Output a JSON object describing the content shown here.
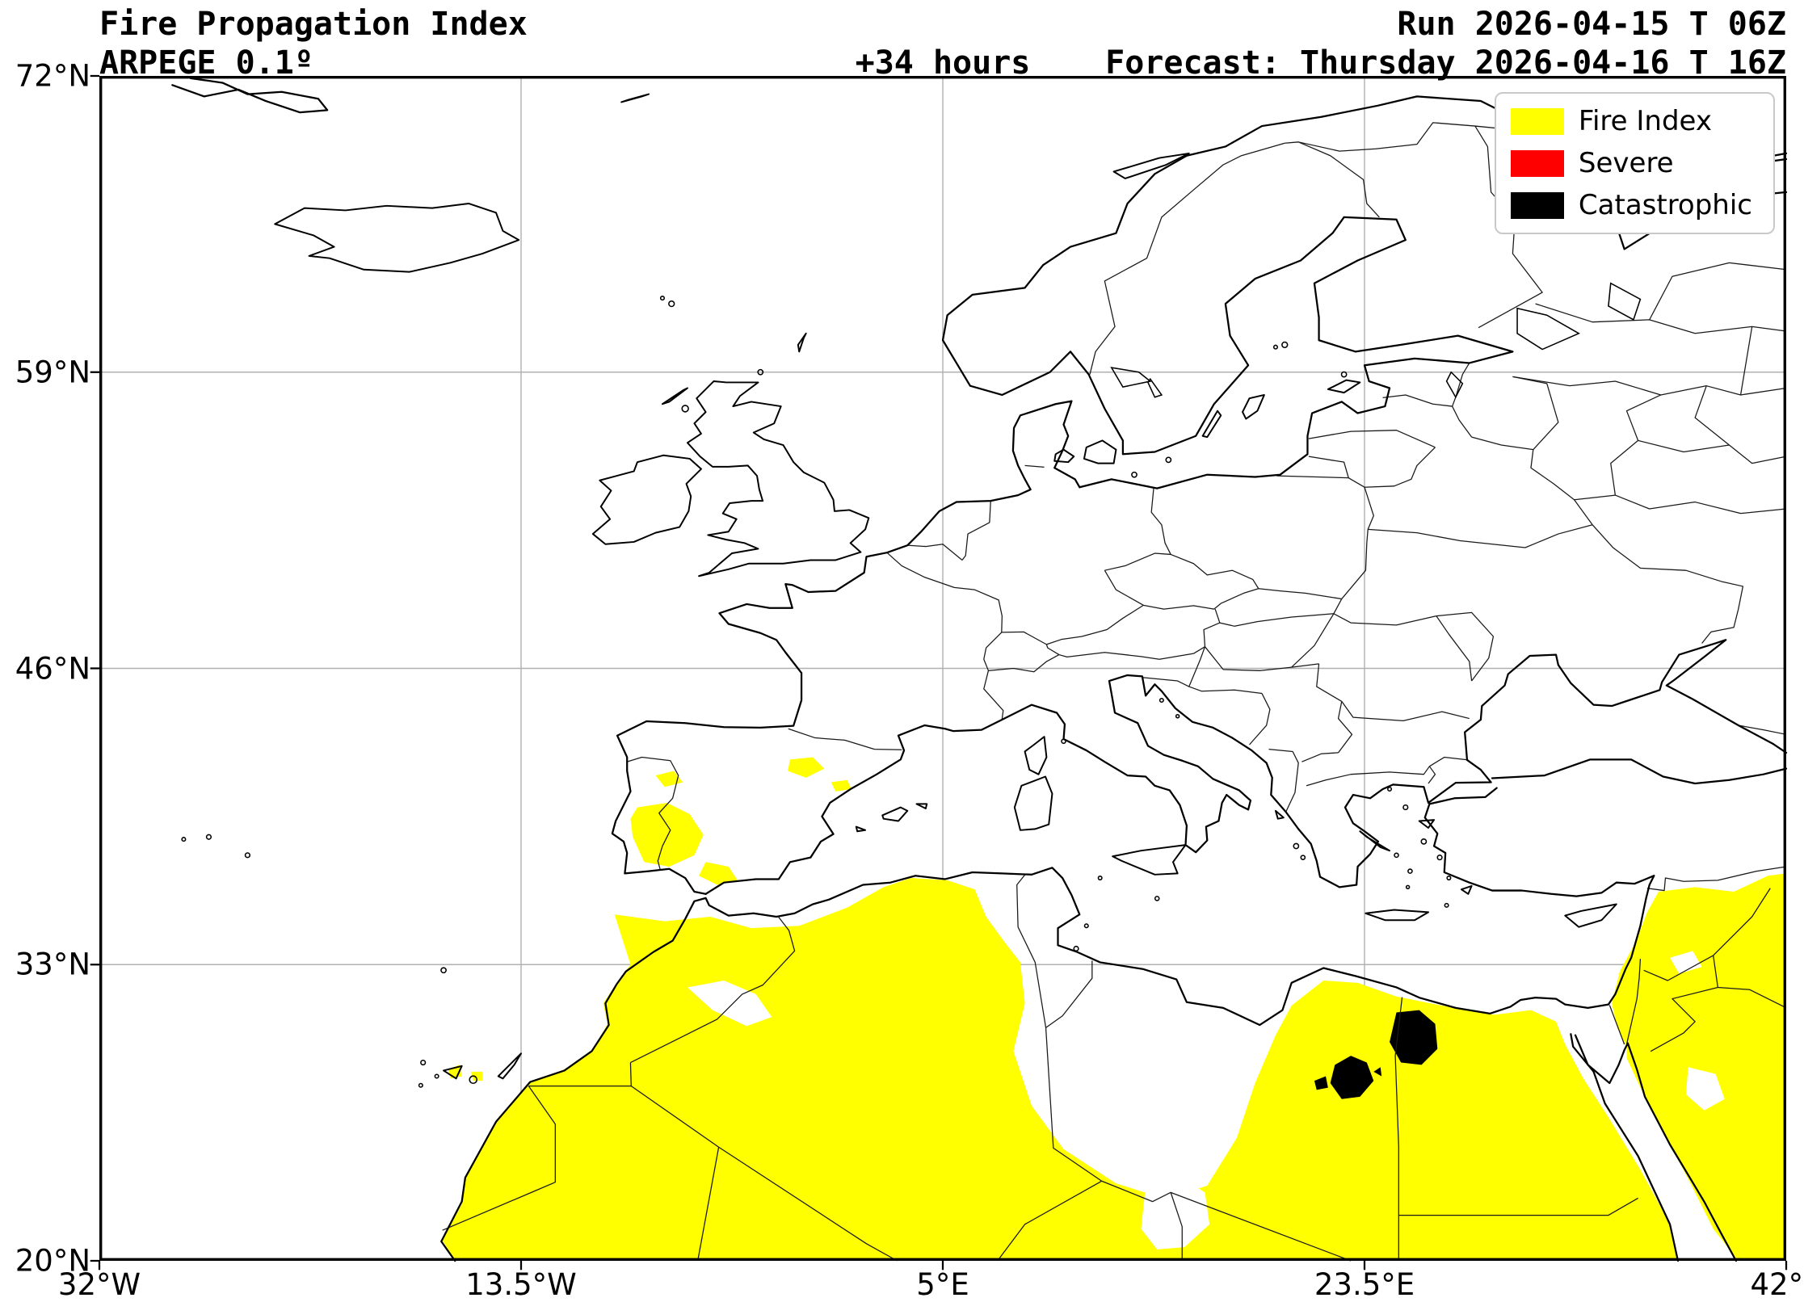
{
  "header": {
    "title": "Fire Propagation Index",
    "model": "ARPEGE 0.1º",
    "lead_time": "+34 hours",
    "run": "Run 2026-04-15 T 06Z",
    "forecast": "Forecast: Thursday 2026-04-16 T 16Z"
  },
  "legend": {
    "items": [
      {
        "label": "Fire Index",
        "color": "#ffff00"
      },
      {
        "label": "Severe",
        "color": "#ff0000"
      },
      {
        "label": "Catastrophic",
        "color": "#000000"
      }
    ]
  },
  "axes": {
    "lon_range": [
      -32,
      42
    ],
    "lat_range": [
      20,
      72
    ],
    "x_ticks": [
      {
        "label": "32°W",
        "lon": -32
      },
      {
        "label": "13.5°W",
        "lon": -13.5
      },
      {
        "label": "5°E",
        "lon": 5
      },
      {
        "label": "23.5°E",
        "lon": 23.5
      },
      {
        "label": "42°E",
        "lon": 42
      }
    ],
    "y_ticks": [
      {
        "label": "72°N",
        "lat": 72
      },
      {
        "label": "59°N",
        "lat": 59
      },
      {
        "label": "46°N",
        "lat": 46
      },
      {
        "label": "33°N",
        "lat": 33
      },
      {
        "label": "20°N",
        "lat": 20
      }
    ],
    "grid_color": "#b0b0b0"
  },
  "map": {
    "colors": {
      "fire": "#ffff00",
      "severe": "#ff0000",
      "catastrophic": "#000000",
      "hole": "#ffffff"
    },
    "fire_regions": [
      {
        "level": "fire",
        "name": "sahara-maghreb",
        "points": [
          [
            -9.4,
            35.2
          ],
          [
            -7.2,
            34.9
          ],
          [
            -5.2,
            35.1
          ],
          [
            -3.4,
            34.6
          ],
          [
            -1.3,
            34.7
          ],
          [
            0.8,
            35.5
          ],
          [
            2.4,
            36.4
          ],
          [
            3.6,
            36.8
          ],
          [
            5.2,
            36.7
          ],
          [
            6.4,
            36.3
          ],
          [
            6.9,
            35.1
          ],
          [
            7.7,
            34.0
          ],
          [
            8.4,
            33.1
          ],
          [
            8.6,
            31.3
          ],
          [
            8.1,
            29.2
          ],
          [
            8.9,
            26.8
          ],
          [
            10.3,
            24.9
          ],
          [
            12.6,
            23.4
          ],
          [
            14.8,
            22.7
          ],
          [
            16.6,
            23.3
          ],
          [
            17.9,
            25.4
          ],
          [
            18.7,
            27.8
          ],
          [
            19.6,
            29.9
          ],
          [
            20.3,
            31.2
          ],
          [
            21.7,
            32.3
          ],
          [
            23.2,
            32.2
          ],
          [
            24.9,
            31.6
          ],
          [
            26.9,
            31.2
          ],
          [
            29.2,
            30.8
          ],
          [
            30.8,
            31.0
          ],
          [
            31.9,
            30.5
          ],
          [
            32.3,
            29.5
          ],
          [
            33.1,
            28.0
          ],
          [
            34.2,
            26.3
          ],
          [
            35.6,
            24.0
          ],
          [
            36.8,
            21.8
          ],
          [
            37.3,
            20.0
          ],
          [
            -16.4,
            20.0
          ],
          [
            -16.95,
            20.9
          ],
          [
            -16.1,
            22.5
          ],
          [
            -15.9,
            23.8
          ],
          [
            -14.6,
            26.1
          ],
          [
            -13.1,
            27.8
          ],
          [
            -11.6,
            28.4
          ],
          [
            -10.4,
            29.2
          ],
          [
            -9.7,
            30.4
          ],
          [
            -9.9,
            31.3
          ],
          [
            -9.3,
            32.2
          ],
          [
            -8.7,
            33.0
          ]
        ]
      },
      {
        "level": "fire",
        "name": "iberia-alentejo",
        "points": [
          [
            -8.4,
            39.9
          ],
          [
            -7.1,
            40.1
          ],
          [
            -6.1,
            39.6
          ],
          [
            -5.5,
            38.7
          ],
          [
            -5.9,
            37.8
          ],
          [
            -7.0,
            37.3
          ],
          [
            -8.1,
            37.5
          ],
          [
            -8.6,
            38.6
          ],
          [
            -8.7,
            39.4
          ]
        ]
      },
      {
        "level": "fire",
        "name": "iberia-andalusia",
        "points": [
          [
            -5.4,
            37.5
          ],
          [
            -4.4,
            37.3
          ],
          [
            -4.0,
            36.7
          ],
          [
            -4.9,
            36.5
          ],
          [
            -5.7,
            36.9
          ]
        ]
      },
      {
        "level": "fire",
        "name": "iberia-douro",
        "points": [
          [
            -7.6,
            41.3
          ],
          [
            -6.8,
            41.5
          ],
          [
            -6.4,
            41.0
          ],
          [
            -7.2,
            40.8
          ]
        ]
      },
      {
        "level": "fire",
        "name": "iberia-ebro-1",
        "points": [
          [
            -1.7,
            42.0
          ],
          [
            -0.7,
            42.1
          ],
          [
            -0.2,
            41.6
          ],
          [
            -1.0,
            41.2
          ],
          [
            -1.8,
            41.5
          ]
        ]
      },
      {
        "level": "fire",
        "name": "iberia-ebro-2",
        "points": [
          [
            0.1,
            41.0
          ],
          [
            0.8,
            41.1
          ],
          [
            1.0,
            40.7
          ],
          [
            0.3,
            40.6
          ]
        ]
      },
      {
        "level": "fire",
        "name": "canary-1",
        "points": [
          [
            -16.7,
            28.4
          ],
          [
            -16.2,
            28.6
          ],
          [
            -16.1,
            28.1
          ],
          [
            -16.6,
            28.0
          ]
        ]
      },
      {
        "level": "fire",
        "name": "canary-2",
        "points": [
          [
            -15.7,
            28.3
          ],
          [
            -15.2,
            28.3
          ],
          [
            -15.2,
            27.9
          ],
          [
            -15.6,
            27.9
          ]
        ]
      },
      {
        "level": "fire",
        "name": "middle-east",
        "points": [
          [
            34.35,
            31.3
          ],
          [
            34.7,
            32.7
          ],
          [
            35.4,
            34.0
          ],
          [
            35.9,
            35.3
          ],
          [
            36.4,
            36.2
          ],
          [
            38.0,
            36.4
          ],
          [
            39.7,
            36.2
          ],
          [
            41.2,
            36.9
          ],
          [
            42.0,
            37.0
          ],
          [
            42.0,
            20.0
          ],
          [
            39.9,
            20.0
          ],
          [
            38.8,
            21.4
          ],
          [
            37.8,
            23.4
          ],
          [
            36.7,
            25.5
          ],
          [
            35.6,
            27.6
          ],
          [
            35.0,
            28.9
          ],
          [
            35.0,
            29.4
          ],
          [
            34.6,
            30.2
          ]
        ]
      },
      {
        "level": "hole",
        "name": "gap-tibesti",
        "points": [
          [
            13.9,
            23.3
          ],
          [
            15.4,
            23.7
          ],
          [
            16.5,
            23.0
          ],
          [
            16.7,
            21.6
          ],
          [
            15.6,
            20.6
          ],
          [
            14.4,
            20.5
          ],
          [
            13.7,
            21.4
          ]
        ]
      },
      {
        "level": "hole",
        "name": "gap-atlas",
        "points": [
          [
            -6.2,
            32.0
          ],
          [
            -4.6,
            32.3
          ],
          [
            -3.2,
            31.7
          ],
          [
            -2.5,
            30.7
          ],
          [
            -3.6,
            30.3
          ],
          [
            -5.1,
            31.0
          ]
        ]
      },
      {
        "level": "hole",
        "name": "gap-arabia",
        "points": [
          [
            37.7,
            28.5
          ],
          [
            38.9,
            28.2
          ],
          [
            39.3,
            27.1
          ],
          [
            38.4,
            26.6
          ],
          [
            37.6,
            27.3
          ]
        ]
      },
      {
        "level": "hole",
        "name": "gap-syria",
        "points": [
          [
            36.9,
            33.3
          ],
          [
            37.9,
            33.6
          ],
          [
            38.3,
            32.9
          ],
          [
            37.3,
            32.6
          ]
        ]
      },
      {
        "level": "catastrophic",
        "name": "blob-kufra-west",
        "points": [
          [
            22.2,
            28.6
          ],
          [
            22.9,
            29.0
          ],
          [
            23.6,
            28.7
          ],
          [
            23.9,
            27.9
          ],
          [
            23.3,
            27.2
          ],
          [
            22.5,
            27.1
          ],
          [
            22.0,
            27.8
          ]
        ]
      },
      {
        "level": "catastrophic",
        "name": "blob-west-desert",
        "points": [
          [
            24.9,
            30.9
          ],
          [
            25.9,
            31.0
          ],
          [
            26.6,
            30.4
          ],
          [
            26.7,
            29.3
          ],
          [
            26.0,
            28.6
          ],
          [
            25.1,
            28.7
          ],
          [
            24.6,
            29.6
          ]
        ]
      },
      {
        "level": "catastrophic",
        "name": "blob-speck-1",
        "points": [
          [
            21.3,
            27.9
          ],
          [
            21.8,
            28.1
          ],
          [
            21.9,
            27.6
          ],
          [
            21.4,
            27.5
          ]
        ]
      },
      {
        "level": "catastrophic",
        "name": "blob-speck-2",
        "points": [
          [
            23.9,
            28.3
          ],
          [
            24.2,
            28.5
          ],
          [
            24.25,
            28.1
          ]
        ]
      }
    ]
  }
}
